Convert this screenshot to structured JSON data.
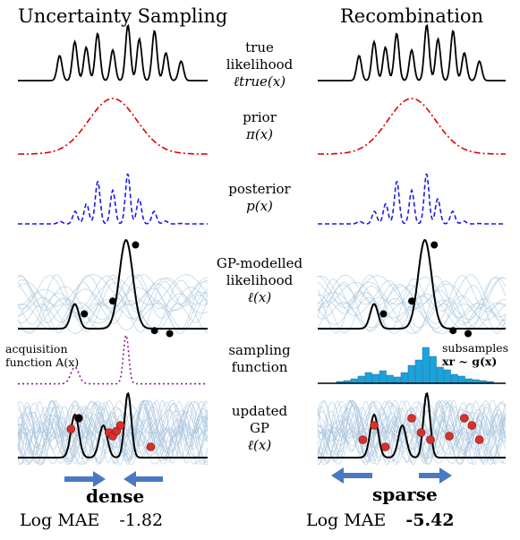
{
  "columns": {
    "left_title": "Uncertainty Sampling",
    "right_title": "Recombination"
  },
  "rows": [
    {
      "line1": "true likelihood",
      "line2": "ℓtrue(x)"
    },
    {
      "line1": "prior",
      "line2": "π(x)"
    },
    {
      "line1": "posterior",
      "line2": "p(x)"
    },
    {
      "line1": "GP-modelled",
      "line2": "likelihood",
      "line3": "ℓ(x)"
    },
    {
      "line1": "sampling",
      "line2": "function"
    },
    {
      "line1": "updated",
      "line2": "GP",
      "line3": "ℓ(x)"
    }
  ],
  "annotations": {
    "acquisition_line1": "acquisition",
    "acquisition_line2": "function A(x)",
    "subsamples_line1": "subsamples",
    "subsamples_line2": "xr ~ g(x)",
    "dense": "dense",
    "sparse": "sparse"
  },
  "results": {
    "left_label": "Log MAE",
    "left_value": "-1.82",
    "right_label": "Log MAE",
    "right_value": "-5.42"
  },
  "colors": {
    "likelihood": "#000000",
    "prior": "#e00000",
    "posterior": "#1a1aee",
    "gp_band": "#b9cfe0",
    "gp_samples": "#a8c4dc",
    "acquisition": "#8b1a8b",
    "histogram": "#1aa3dd",
    "points_black": "#000000",
    "points_red": "#d9302a",
    "arrow": "#4a78c2"
  }
}
